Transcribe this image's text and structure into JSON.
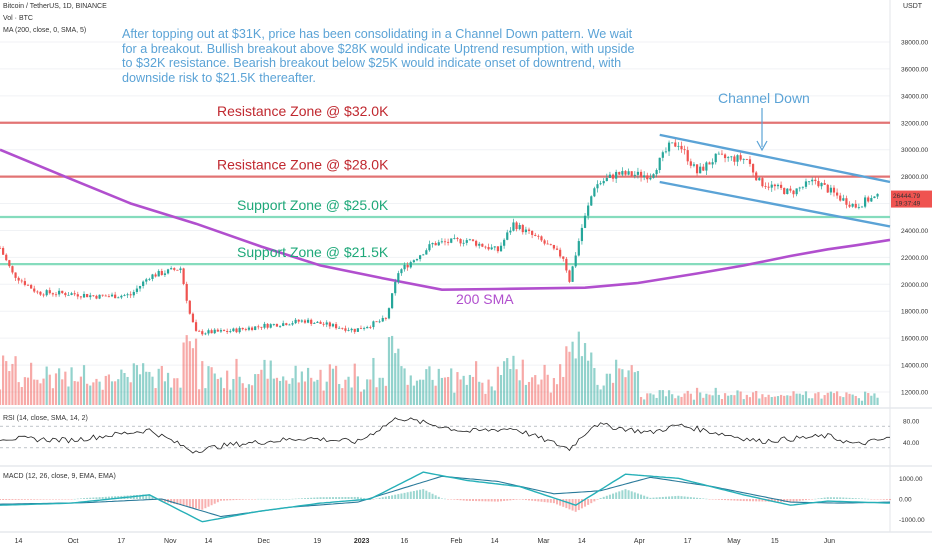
{
  "header": {
    "symbol_line": "Bitcoin / TetherUS, 1D, BINANCE",
    "volume_line": "Vol · BTC",
    "ma_line": "MA (200, close, 0, SMA, 5)",
    "currency": "USDT"
  },
  "annotation": {
    "text": "After topping out at $31K, price has been consolidating in a Channel Down pattern. We wait for a breakout. Bullish breakout above $28K would indicate Uptrend resumption, with upside to $32K resistance. Bearish breakout below $25K would indicate onset of downtrend, with downside risk to $21.5K thereafter."
  },
  "colors": {
    "up": "#26a69a",
    "down": "#ef5350",
    "resistance": "#e06666",
    "resistance_text": "#c0282f",
    "support": "#78d9b6",
    "support_text": "#1ea879",
    "ma": "#b14fce",
    "channel": "#5ba3d6",
    "macd": "#26b0b8",
    "signal": "#2a7a9a"
  },
  "chart_data": [
    {
      "type": "candlestick",
      "title": "Bitcoin / TetherUS, 1D, BINANCE",
      "y_ticks": [
        12000,
        14000,
        16000,
        18000,
        20000,
        22000,
        24000,
        26000,
        28000,
        30000,
        32000,
        34000,
        36000,
        38000
      ],
      "y_tick_labels": [
        "12000.00",
        "14000.00",
        "16000.00",
        "18000.00",
        "20000.00",
        "22000.00",
        "24000.00",
        "26000.00",
        "28000.00",
        "30000.00",
        "32000.00",
        "34000.00",
        "36000.00",
        "38000.00"
      ],
      "x_ticks": [
        "14",
        "Oct",
        "17",
        "Nov",
        "14",
        "Dec",
        "19",
        "2023",
        "16",
        "Feb",
        "14",
        "Mar",
        "14",
        "Apr",
        "17",
        "May",
        "15",
        "Jun"
      ],
      "x_range": [
        "2022-09-08",
        "2023-06-21"
      ],
      "last_price": "26444.79",
      "countdown": "19:37:49",
      "horizontal_levels": [
        {
          "label": "Resistance Zone @ $32.0K",
          "value": 32000,
          "kind": "resistance"
        },
        {
          "label": "Resistance Zone @ $28.0K",
          "value": 28000,
          "kind": "resistance"
        },
        {
          "label": "Support Zone @ $25.0K",
          "value": 25000,
          "kind": "support"
        },
        {
          "label": "Support Zone @ $21.5K",
          "value": 21500,
          "kind": "support"
        }
      ],
      "ma_label": "200 SMA",
      "ma_200": [
        [
          "2022-09-08",
          30000
        ],
        [
          "2022-10-01",
          27800
        ],
        [
          "2022-10-20",
          26000
        ],
        [
          "2022-11-10",
          24500
        ],
        [
          "2022-12-01",
          22800
        ],
        [
          "2022-12-20",
          21400
        ],
        [
          "2023-01-10",
          20400
        ],
        [
          "2023-01-28",
          19600
        ],
        [
          "2023-02-15",
          19650
        ],
        [
          "2023-03-01",
          19700
        ],
        [
          "2023-03-15",
          19750
        ],
        [
          "2023-04-01",
          20100
        ],
        [
          "2023-04-20",
          20800
        ],
        [
          "2023-05-05",
          21400
        ],
        [
          "2023-05-20",
          22100
        ],
        [
          "2023-06-01",
          22600
        ],
        [
          "2023-06-10",
          22900
        ],
        [
          "2023-06-21",
          23300
        ]
      ],
      "price_path": [
        [
          "2022-09-08",
          22700
        ],
        [
          "2022-09-12",
          20800
        ],
        [
          "2022-09-20",
          19400
        ],
        [
          "2022-10-01",
          19300
        ],
        [
          "2022-10-10",
          19100
        ],
        [
          "2022-10-20",
          19200
        ],
        [
          "2022-10-26",
          20600
        ],
        [
          "2022-11-05",
          21200
        ],
        [
          "2022-11-08",
          17800
        ],
        [
          "2022-11-10",
          16400
        ],
        [
          "2022-11-20",
          16500
        ],
        [
          "2022-12-01",
          16900
        ],
        [
          "2022-12-15",
          17300
        ],
        [
          "2022-12-31",
          16600
        ],
        [
          "2023-01-10",
          17400
        ],
        [
          "2023-01-14",
          20900
        ],
        [
          "2023-01-25",
          23000
        ],
        [
          "2023-02-05",
          23300
        ],
        [
          "2023-02-15",
          22500
        ],
        [
          "2023-02-20",
          24500
        ],
        [
          "2023-03-01",
          23200
        ],
        [
          "2023-03-08",
          22000
        ],
        [
          "2023-03-10",
          20300
        ],
        [
          "2023-03-14",
          24200
        ],
        [
          "2023-03-18",
          27300
        ],
        [
          "2023-03-25",
          28200
        ],
        [
          "2023-04-05",
          28100
        ],
        [
          "2023-04-11",
          30200
        ],
        [
          "2023-04-14",
          30500
        ],
        [
          "2023-04-20",
          28300
        ],
        [
          "2023-04-26",
          29400
        ],
        [
          "2023-05-06",
          29300
        ],
        [
          "2023-05-10",
          27600
        ],
        [
          "2023-05-20",
          26800
        ],
        [
          "2023-05-28",
          27700
        ],
        [
          "2023-06-05",
          26400
        ],
        [
          "2023-06-10",
          25800
        ],
        [
          "2023-06-14",
          26300
        ],
        [
          "2023-06-17",
          26444
        ]
      ],
      "channel": {
        "label": "Channel Down",
        "upper": [
          [
            "2023-04-08",
            31100
          ],
          [
            "2023-06-21",
            27600
          ]
        ],
        "lower": [
          [
            "2023-04-08",
            27600
          ],
          [
            "2023-06-21",
            24300
          ]
        ]
      }
    },
    {
      "type": "line",
      "title": "RSI (14, close, SMA, 14, 2)",
      "y_ticks": [
        40,
        80
      ],
      "y_tick_labels": [
        "40.00",
        "80.00"
      ],
      "bands": [
        30,
        70
      ],
      "values": [
        [
          "2022-09-08",
          48
        ],
        [
          "2022-10-01",
          44
        ],
        [
          "2022-10-26",
          63
        ],
        [
          "2022-11-09",
          24
        ],
        [
          "2022-11-20",
          35
        ],
        [
          "2022-12-15",
          48
        ],
        [
          "2023-01-01",
          41
        ],
        [
          "2023-01-14",
          86
        ],
        [
          "2023-02-05",
          60
        ],
        [
          "2023-02-20",
          66
        ],
        [
          "2023-03-10",
          28
        ],
        [
          "2023-03-18",
          74
        ],
        [
          "2023-04-05",
          58
        ],
        [
          "2023-04-14",
          72
        ],
        [
          "2023-05-10",
          42
        ],
        [
          "2023-06-01",
          52
        ],
        [
          "2023-06-10",
          36
        ],
        [
          "2023-06-21",
          48
        ]
      ]
    },
    {
      "type": "line",
      "title": "MACD (12, 26, close, 9, EMA, EMA)",
      "y_ticks": [
        1000,
        0,
        -1000
      ],
      "y_tick_labels": [
        "1000.00",
        "0.00",
        "-1000.00"
      ],
      "series": [
        {
          "role": "macd",
          "values": [
            [
              "2022-09-08",
              -300
            ],
            [
              "2022-10-01",
              -200
            ],
            [
              "2022-10-26",
              200
            ],
            [
              "2022-11-12",
              -1100
            ],
            [
              "2022-11-30",
              -600
            ],
            [
              "2022-12-20",
              -200
            ],
            [
              "2023-01-05",
              0
            ],
            [
              "2023-01-22",
              1300
            ],
            [
              "2023-02-05",
              900
            ],
            [
              "2023-02-22",
              600
            ],
            [
              "2023-03-12",
              -300
            ],
            [
              "2023-03-28",
              1200
            ],
            [
              "2023-04-14",
              1000
            ],
            [
              "2023-05-05",
              200
            ],
            [
              "2023-05-20",
              -300
            ],
            [
              "2023-06-01",
              -100
            ],
            [
              "2023-06-21",
              -200
            ]
          ]
        },
        {
          "role": "signal",
          "values": [
            [
              "2022-09-08",
              -250
            ],
            [
              "2022-10-05",
              -180
            ],
            [
              "2022-10-30",
              0
            ],
            [
              "2022-11-18",
              -850
            ],
            [
              "2022-12-10",
              -400
            ],
            [
              "2023-01-01",
              -150
            ],
            [
              "2023-01-28",
              1100
            ],
            [
              "2023-02-15",
              850
            ],
            [
              "2023-03-05",
              250
            ],
            [
              "2023-03-20",
              400
            ],
            [
              "2023-04-05",
              1050
            ],
            [
              "2023-04-25",
              600
            ],
            [
              "2023-05-20",
              -150
            ],
            [
              "2023-06-05",
              -200
            ],
            [
              "2023-06-21",
              -150
            ]
          ]
        }
      ]
    }
  ]
}
